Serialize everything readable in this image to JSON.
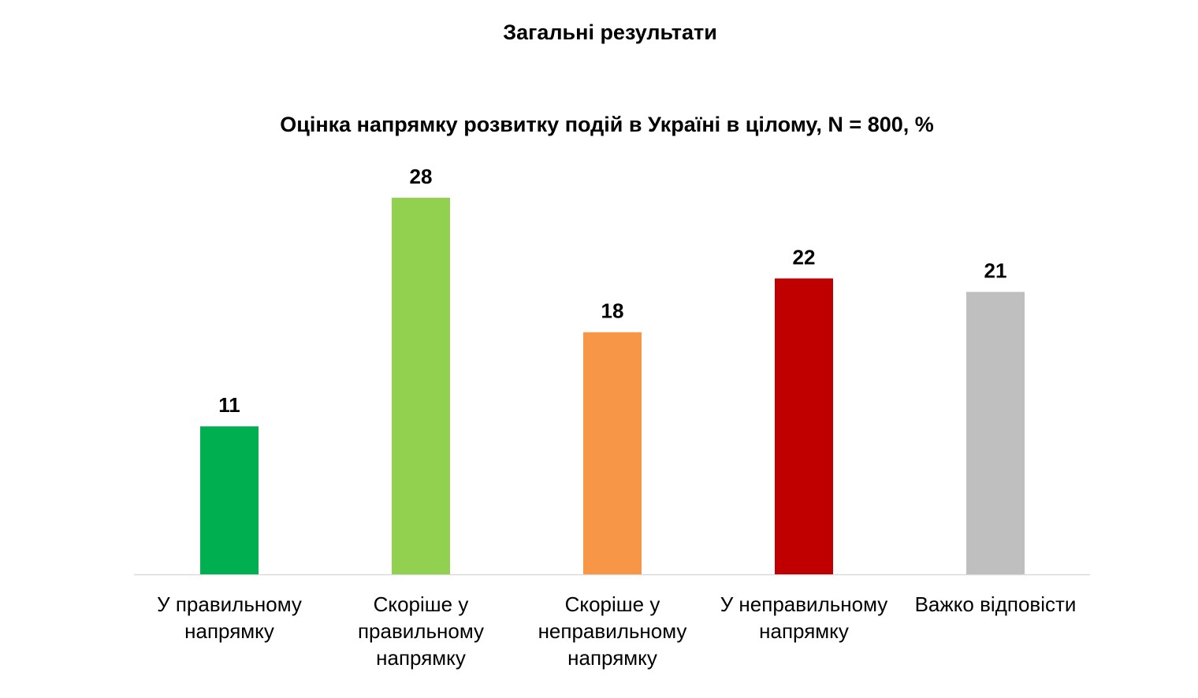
{
  "title": "Загальні результати",
  "chart_data": {
    "type": "bar",
    "title": "Оцінка напрямку розвитку подій в Україні в цілому, N = 800, %",
    "categories": [
      "У правильному напрямку",
      "Скоріше у правильному напрямку",
      "Скоріше у неправильному напрямку",
      "У неправильному напрямку",
      "Важко відповісти"
    ],
    "values": [
      11,
      28,
      18,
      22,
      21
    ],
    "colors": [
      "#00b050",
      "#92d050",
      "#f79646",
      "#c00000",
      "#bfbfbf"
    ],
    "ylim": [
      0,
      28
    ],
    "grid": false,
    "legend": "none"
  }
}
